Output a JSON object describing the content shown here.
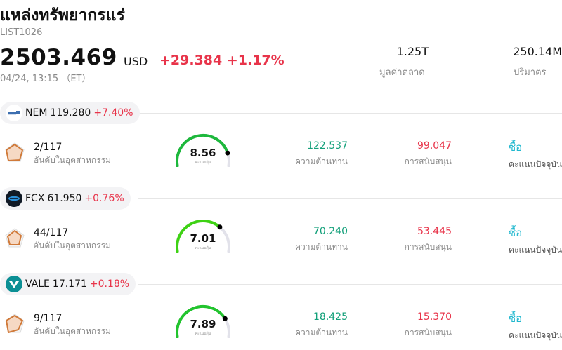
{
  "header": {
    "title": "แหล่งทรัพยากรแร่",
    "code": "LIST1026",
    "price": "2503.469",
    "currency": "USD",
    "change": "+29.384 +1.17%",
    "timestamp": "04/24, 13:15 （ET）",
    "market_cap": {
      "value": "1.25T",
      "label": "มูลค่าตลาด"
    },
    "volume": {
      "value": "250.14M",
      "label": "ปริมาตร"
    }
  },
  "colors": {
    "up": "#e8344a",
    "resistance": "#13a07a",
    "action": "#20b8cf"
  },
  "stocks": [
    {
      "symbol": "NEM",
      "price": "119.280",
      "change": "+7.40%",
      "logo_icon": "nem-logo-icon",
      "rank": "2/117",
      "rank_label": "อันดับในอุตสาหกรรม",
      "score": "8.56",
      "score_fraction": 0.856,
      "score_label": "คะแนนหุ้น",
      "resistance": "122.537",
      "resistance_label": "ความต้านทาน",
      "support": "99.047",
      "support_label": "การสนับสนุน",
      "action": "ซื้อ",
      "action_label": "คะแนนปัจจุบัน"
    },
    {
      "symbol": "FCX",
      "price": "61.950",
      "change": "+0.76%",
      "logo_icon": "fcx-logo-icon",
      "rank": "44/117",
      "rank_label": "อันดับในอุตสาหกรรม",
      "score": "7.01",
      "score_fraction": 0.701,
      "score_label": "คะแนนหุ้น",
      "resistance": "70.240",
      "resistance_label": "ความต้านทาน",
      "support": "53.445",
      "support_label": "การสนับสนุน",
      "action": "ซื้อ",
      "action_label": "คะแนนปัจจุบัน"
    },
    {
      "symbol": "VALE",
      "price": "17.171",
      "change": "+0.18%",
      "logo_icon": "vale-logo-icon",
      "rank": "9/117",
      "rank_label": "อันดับในอุตสาหกรรม",
      "score": "7.89",
      "score_fraction": 0.789,
      "score_label": "คะแนนหุ้น",
      "resistance": "18.425",
      "resistance_label": "ความต้านทาน",
      "support": "15.370",
      "support_label": "การสนับสนุน",
      "action": "ซื้อ",
      "action_label": "คะแนนปัจจุบัน"
    }
  ]
}
